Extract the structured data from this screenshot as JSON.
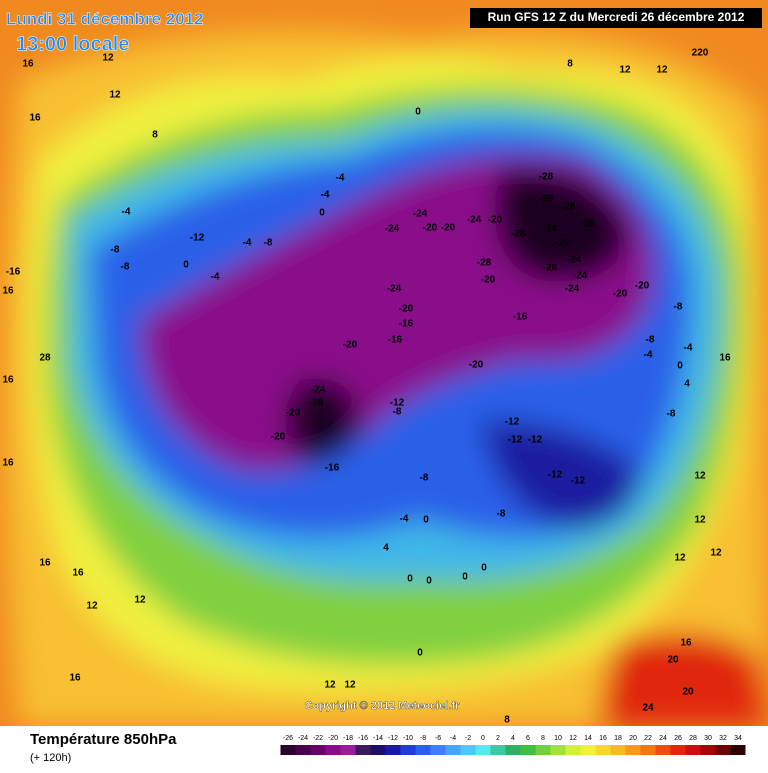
{
  "header": {
    "date": "Lundi 31 décembre 2012",
    "time": "13:00 locale",
    "run": "Run GFS 12 Z du Mercredi 26 décembre 2012"
  },
  "copyright": "Copyright © 2012 Meteociel.fr",
  "footer": {
    "title": "Température 850hPa",
    "lead": "(+ 120h)"
  },
  "contour_labels": [
    16,
    12,
    12,
    16,
    8,
    8,
    12,
    12,
    220,
    0,
    -4,
    -4,
    0,
    -4,
    -8,
    -8,
    -12,
    0,
    -4,
    -4,
    -8,
    -16,
    16,
    -28,
    -28,
    -28,
    -28,
    -28,
    -28,
    -24,
    -24,
    -20,
    -20,
    -24,
    -20,
    -24,
    -24,
    -28,
    -24,
    -24,
    -24,
    -20,
    -20,
    -20,
    -24,
    -20,
    -16,
    -16,
    -16,
    -20,
    -24,
    -28,
    -20,
    -20,
    -16,
    -12,
    -8,
    -20,
    -12,
    -12,
    -12,
    -12,
    -12,
    -8,
    -8,
    -4,
    0,
    4,
    0,
    0,
    0,
    0,
    0,
    -8,
    -4,
    0,
    -4,
    4,
    -8,
    -8,
    16,
    12,
    12,
    12,
    12,
    16,
    20,
    20,
    24,
    16,
    16,
    12,
    12,
    16,
    12,
    12,
    8,
    28,
    16,
    16
  ],
  "colorbar": {
    "ticks": [
      -26,
      -24,
      -22,
      -20,
      -18,
      -16,
      -14,
      -12,
      -10,
      -8,
      -6,
      -4,
      -2,
      0,
      2,
      4,
      6,
      8,
      10,
      12,
      14,
      16,
      18,
      20,
      22,
      24,
      26,
      28,
      30,
      32,
      34
    ],
    "colors": [
      "#2a002a",
      "#4b004b",
      "#6a006a",
      "#8a0a8a",
      "#9b1b9b",
      "#3a1c5c",
      "#1c0c6c",
      "#1a1aa0",
      "#1f3fd0",
      "#2a60e8",
      "#3b80ff",
      "#45a5ff",
      "#50c8ff",
      "#5ae8f0",
      "#40c8a0",
      "#30b060",
      "#40c040",
      "#70d040",
      "#a0e040",
      "#d0f040",
      "#f0f040",
      "#f8d830",
      "#f8b828",
      "#f89820",
      "#f07818",
      "#e85010",
      "#e02808",
      "#c81010",
      "#a00808",
      "#700404",
      "#300000"
    ]
  }
}
